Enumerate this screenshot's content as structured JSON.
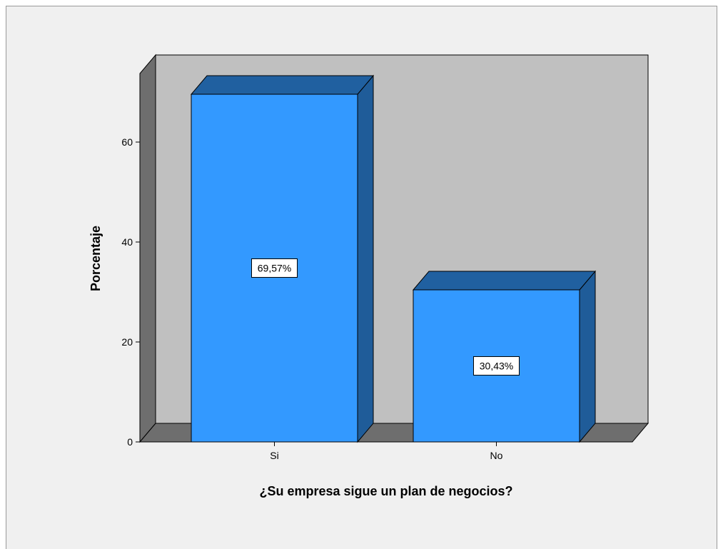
{
  "chart_data": {
    "type": "bar",
    "title": "",
    "xlabel": "¿Su empresa sigue un plan de negocios?",
    "ylabel": "Porcentaje",
    "categories": [
      "Si",
      "No"
    ],
    "values": [
      69.57,
      30.43
    ],
    "data_labels": [
      "69,57%",
      "30,43%"
    ],
    "ylim": [
      0,
      70
    ],
    "yticks": [
      "0",
      "20",
      "40",
      "60"
    ],
    "grid": false,
    "legend": "none",
    "three_d": true
  },
  "colors": {
    "bar_front": "#3399ff",
    "bar_side": "#1f5c99",
    "bar_top": "#2060a0",
    "wall": "#c0c0c0",
    "wall_shadow": "#6e6e6e",
    "floor": "#6e6e6e",
    "background": "#f0f0f0"
  }
}
